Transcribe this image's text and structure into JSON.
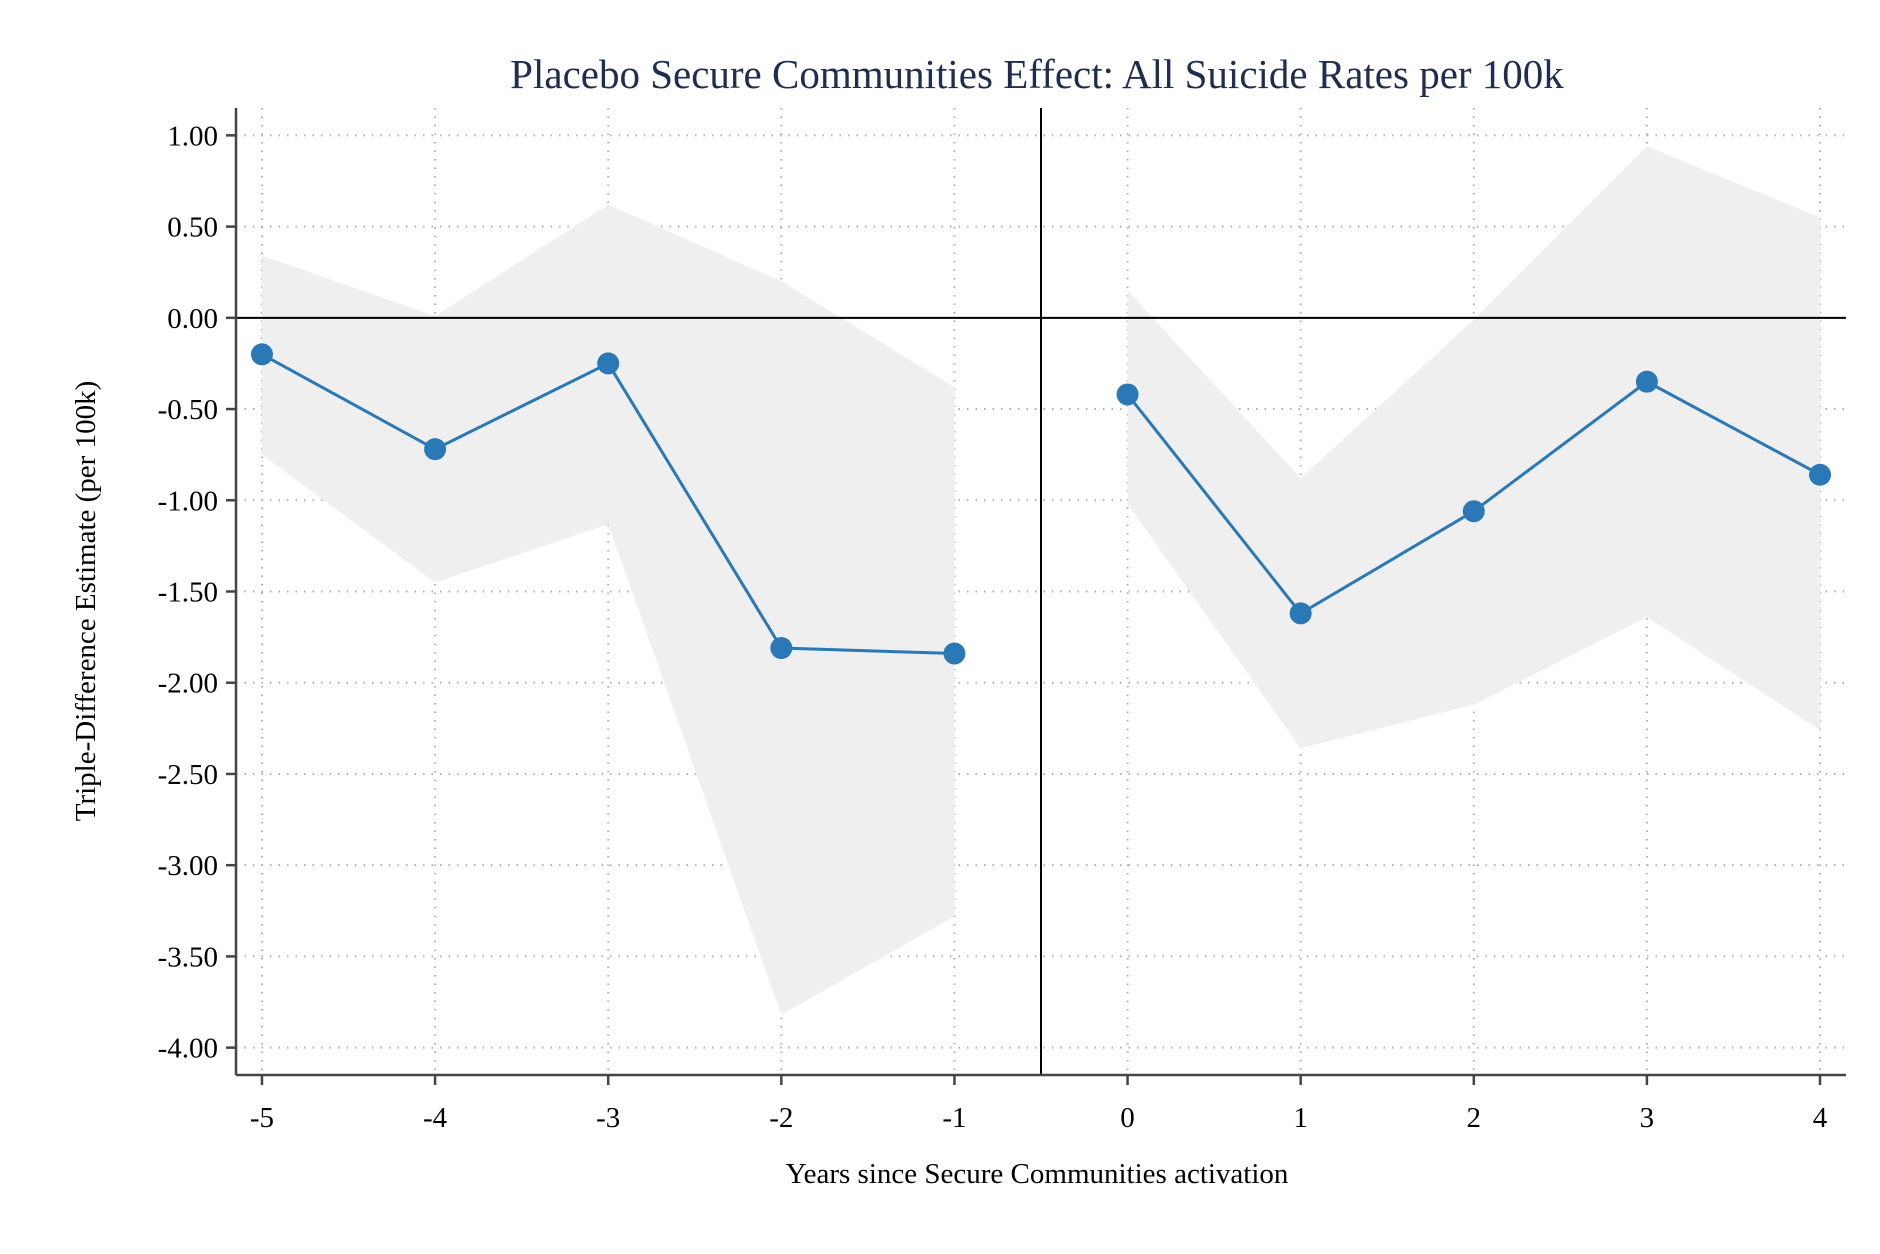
{
  "chart_data": {
    "type": "line",
    "title": "Placebo Secure Communities Effect: All Suicide Rates per 100k",
    "xlabel": "Years since Secure Communities activation",
    "ylabel": "Triple-Difference Estimate (per 100k)",
    "xlim": [
      -5.15,
      4.15
    ],
    "ylim": [
      -4.15,
      1.15
    ],
    "x_ticks": [
      -5,
      -4,
      -3,
      -2,
      -1,
      0,
      1,
      2,
      3,
      4
    ],
    "x_tick_labels": [
      "-5",
      "-4",
      "-3",
      "-2",
      "-1",
      "0",
      "1",
      "2",
      "3",
      "4"
    ],
    "y_ticks": [
      1.0,
      0.5,
      0.0,
      -0.5,
      -1.0,
      -1.5,
      -2.0,
      -2.5,
      -3.0,
      -3.5,
      -4.0
    ],
    "y_tick_labels": [
      "1.00",
      "0.50",
      "0.00",
      "-0.50",
      "-1.00",
      "-1.50",
      "-2.00",
      "-2.50",
      "-3.00",
      "-3.50",
      "-4.00"
    ],
    "grid": true,
    "reference_lines": {
      "y": 0,
      "x": -0.5
    },
    "colors": {
      "series": "#2a78b5",
      "ci_band": "#efefef",
      "grid": "#b0b0b0",
      "title": "#1f2d4e"
    },
    "series": [
      {
        "segment": "pre",
        "x": [
          -5,
          -4,
          -3,
          -2,
          -1
        ],
        "y": [
          -0.2,
          -0.72,
          -0.25,
          -1.81,
          -1.84
        ],
        "ci_lower": [
          -0.75,
          -1.45,
          -1.13,
          -3.82,
          -3.28
        ],
        "ci_upper": [
          0.34,
          0.01,
          0.62,
          0.2,
          -0.38
        ]
      },
      {
        "segment": "post",
        "x": [
          0,
          1,
          2,
          3,
          4
        ],
        "y": [
          -0.42,
          -1.62,
          -1.06,
          -0.35,
          -0.86
        ],
        "ci_lower": [
          -1.02,
          -2.36,
          -2.12,
          -1.64,
          -2.26
        ],
        "ci_upper": [
          0.15,
          -0.88,
          -0.01,
          0.94,
          0.55
        ]
      }
    ]
  }
}
